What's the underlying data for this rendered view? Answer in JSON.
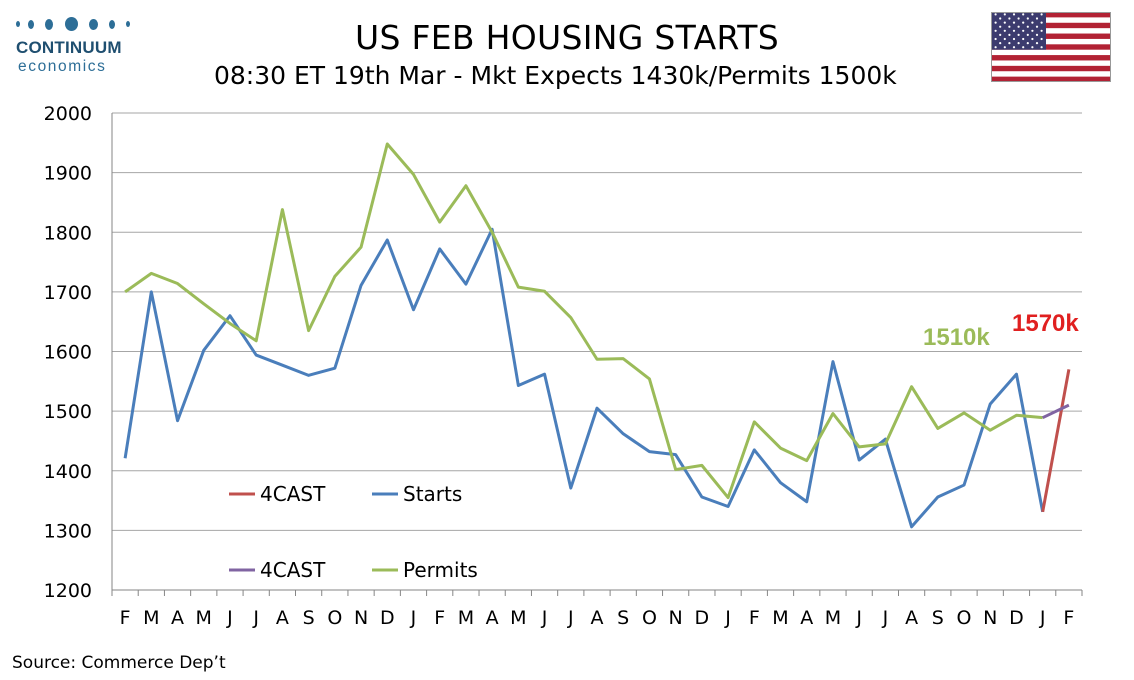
{
  "logo": {
    "brand": "CONTINUUM",
    "sub": "economics"
  },
  "title": "US FEB HOUSING STARTS",
  "subtitle": "08:30 ET 19th Mar - Mkt Expects 1430k/Permits 1500k",
  "source": "Source: Commerce Dep’t",
  "chart_data": {
    "type": "line",
    "categories": [
      "F",
      "M",
      "A",
      "M",
      "J",
      "J",
      "A",
      "S",
      "O",
      "N",
      "D",
      "J",
      "F",
      "M",
      "A",
      "M",
      "J",
      "J",
      "A",
      "S",
      "O",
      "N",
      "D",
      "J",
      "F",
      "M",
      "A",
      "M",
      "J",
      "J",
      "A",
      "S",
      "O",
      "N",
      "D",
      "J",
      "F"
    ],
    "ylim": [
      1200,
      2000
    ],
    "yticks": [
      1200,
      1300,
      1400,
      1500,
      1600,
      1700,
      1800,
      1900,
      2000
    ],
    "grid": true,
    "legend_placement": "bottom-left",
    "series": [
      {
        "name": "Starts",
        "color": "#4a7ebb",
        "values": [
          1421,
          1700,
          1484,
          1602,
          1660,
          1594,
          1577,
          1560,
          1572,
          1711,
          1787,
          1670,
          1772,
          1713,
          1805,
          1543,
          1562,
          1371,
          1505,
          1462,
          1432,
          1427,
          1356,
          1340,
          1435,
          1380,
          1348,
          1583,
          1418,
          1453,
          1306,
          1356,
          1376,
          1512,
          1562,
          1331,
          null
        ]
      },
      {
        "name": "Permits",
        "color": "#9bbb59",
        "values": [
          1700,
          1731,
          1714,
          1680,
          1647,
          1618,
          1838,
          1635,
          1726,
          1775,
          1948,
          1897,
          1817,
          1878,
          1800,
          1708,
          1701,
          1657,
          1587,
          1588,
          1554,
          1402,
          1409,
          1355,
          1482,
          1438,
          1417,
          1496,
          1440,
          1445,
          1541,
          1471,
          1497,
          1468,
          1493,
          1489,
          null
        ]
      },
      {
        "name": "4CAST",
        "color": "#c0504d",
        "pairs_with": "Starts",
        "values": [
          null,
          null,
          null,
          null,
          null,
          null,
          null,
          null,
          null,
          null,
          null,
          null,
          null,
          null,
          null,
          null,
          null,
          null,
          null,
          null,
          null,
          null,
          null,
          null,
          null,
          null,
          null,
          null,
          null,
          null,
          null,
          null,
          null,
          null,
          null,
          1331,
          1570
        ]
      },
      {
        "name": "4CAST",
        "color": "#8064a2",
        "pairs_with": "Permits",
        "values": [
          null,
          null,
          null,
          null,
          null,
          null,
          null,
          null,
          null,
          null,
          null,
          null,
          null,
          null,
          null,
          null,
          null,
          null,
          null,
          null,
          null,
          null,
          null,
          null,
          null,
          null,
          null,
          null,
          null,
          null,
          null,
          null,
          null,
          null,
          null,
          1489,
          1510
        ]
      }
    ],
    "annotations": [
      {
        "text": "1510k",
        "color": "#9bbb59"
      },
      {
        "text": "1570k",
        "color": "#e02020"
      }
    ]
  }
}
